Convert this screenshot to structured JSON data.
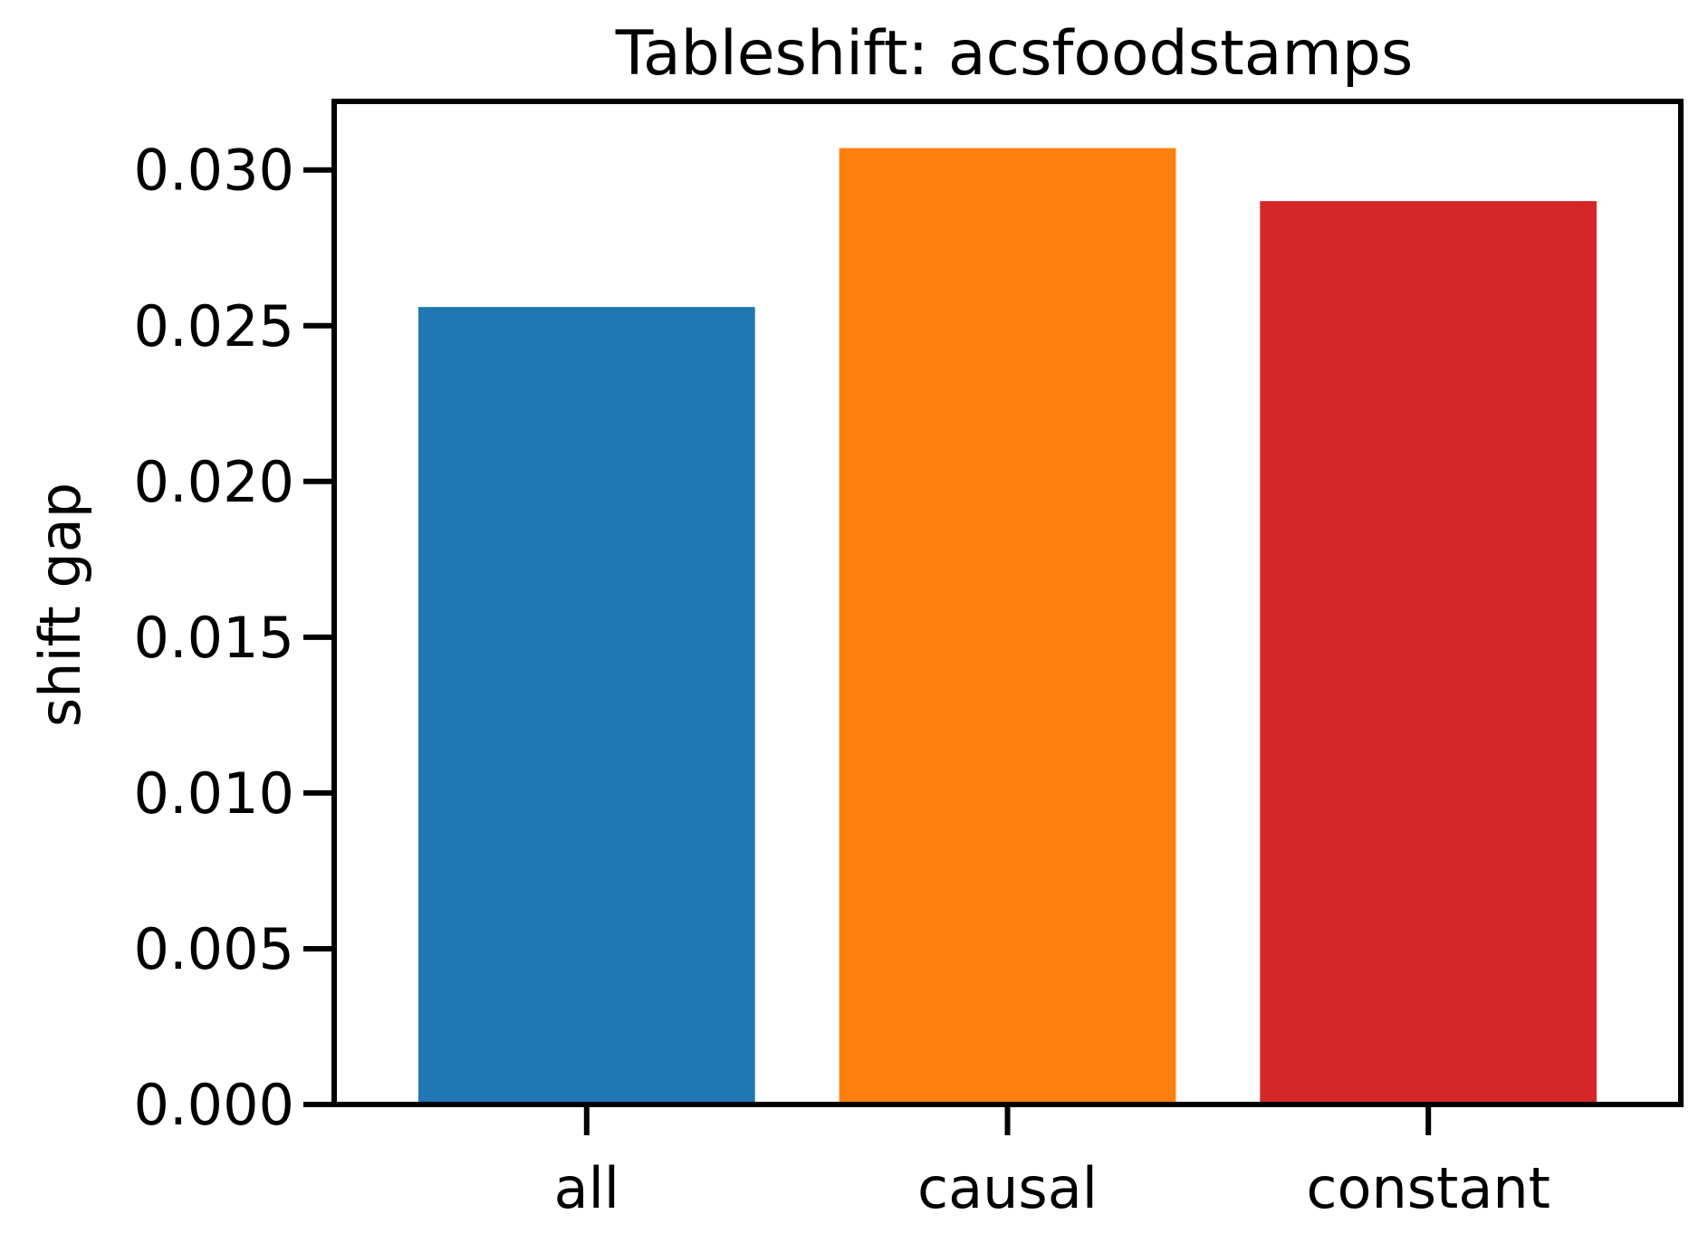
{
  "chart_data": {
    "type": "bar",
    "title": "Tableshift: acsfoodstamps",
    "xlabel": "",
    "ylabel": "shift gap",
    "categories": [
      "all",
      "causal",
      "constant"
    ],
    "values": [
      0.0256,
      0.0307,
      0.029
    ],
    "colors": [
      "#1f77b4",
      "#ff7f0e",
      "#d62728"
    ],
    "ylim": [
      0,
      0.0322
    ],
    "yticks": [
      0.0,
      0.005,
      0.01,
      0.015,
      0.02,
      0.025,
      0.03
    ],
    "ytick_labels": [
      "0.000",
      "0.005",
      "0.010",
      "0.015",
      "0.020",
      "0.025",
      "0.030"
    ],
    "grid": false,
    "legend": "none"
  }
}
